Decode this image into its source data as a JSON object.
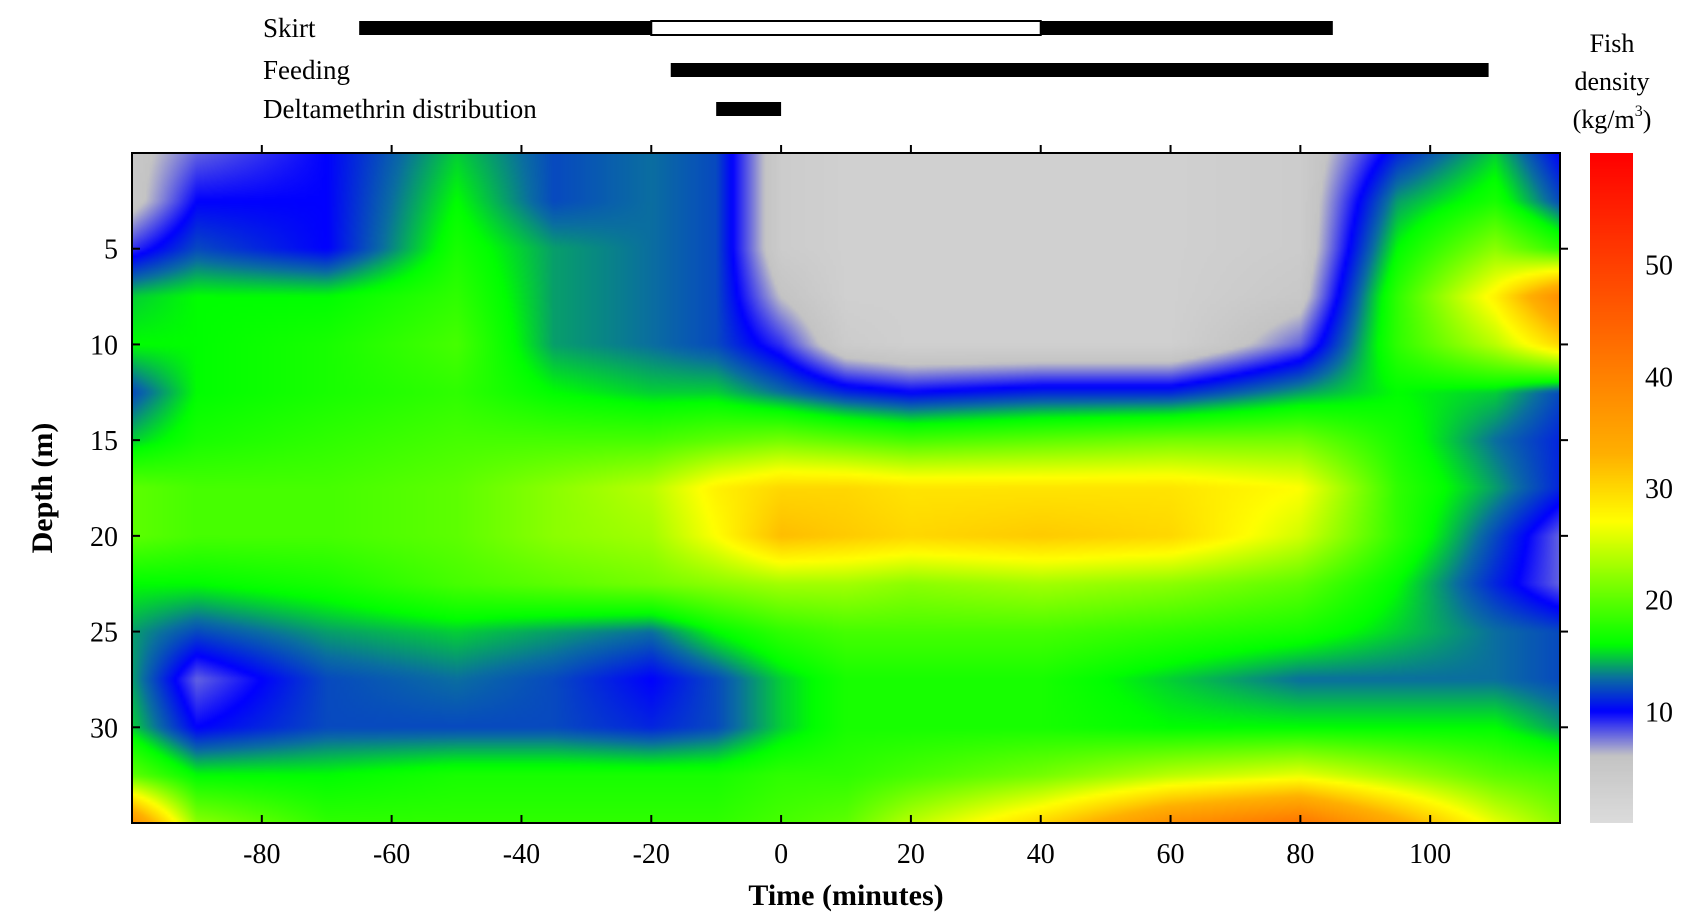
{
  "chart_data": {
    "type": "heatmap",
    "xlabel": "Time (minutes)",
    "ylabel": "Depth (m)",
    "xlim": [
      -100,
      120
    ],
    "ylim": [
      0,
      35
    ],
    "x_ticks": [
      -80,
      -60,
      -40,
      -20,
      0,
      20,
      40,
      60,
      80,
      100
    ],
    "y_ticks": [
      5,
      10,
      15,
      20,
      25,
      30
    ],
    "y_inverted": true,
    "colorbar": {
      "title_lines": [
        "Fish",
        "density",
        "(kg/m",
        "3",
        ")"
      ],
      "ticks": [
        10,
        20,
        30,
        40,
        50
      ],
      "range": [
        0,
        60
      ],
      "colors": [
        {
          "value": 0,
          "color": "#dcdcdc"
        },
        {
          "value": 6,
          "color": "#c4c4c4"
        },
        {
          "value": 10,
          "color": "#0000ff"
        },
        {
          "value": 13,
          "color": "#0a6ea0"
        },
        {
          "value": 16,
          "color": "#00ff00"
        },
        {
          "value": 27,
          "color": "#ffff00"
        },
        {
          "value": 33,
          "color": "#ffb000"
        },
        {
          "value": 45,
          "color": "#ff6000"
        },
        {
          "value": 60,
          "color": "#ff0000"
        }
      ]
    },
    "activity_bars": [
      {
        "label": "Skirt",
        "segments": [
          {
            "start": -65,
            "end": -20,
            "fill": "black"
          },
          {
            "start": -20,
            "end": 40,
            "fill": "white"
          },
          {
            "start": 40,
            "end": 85,
            "fill": "black"
          }
        ]
      },
      {
        "label": "Feeding",
        "segments": [
          {
            "start": -17,
            "end": 109,
            "fill": "black"
          }
        ]
      },
      {
        "label": "Deltamethrin distribution",
        "segments": [
          {
            "start": -10,
            "end": 0,
            "fill": "black"
          }
        ]
      }
    ],
    "density_grid": {
      "x": [
        -100,
        -90,
        -70,
        -50,
        -35,
        -20,
        -10,
        0,
        10,
        20,
        40,
        60,
        80,
        95,
        110,
        120
      ],
      "y": [
        0,
        2.5,
        5,
        7.5,
        10,
        12.5,
        15,
        17.5,
        20,
        22.5,
        25,
        27.5,
        30,
        32.5,
        35
      ],
      "z": [
        [
          5,
          8,
          10,
          15,
          12,
          13,
          12,
          4,
          3,
          3,
          3,
          3,
          4,
          11,
          15,
          10
        ],
        [
          5,
          10,
          10,
          16,
          12,
          13,
          12,
          4,
          3,
          3,
          3,
          3,
          4,
          14,
          17,
          12
        ],
        [
          9,
          12,
          10,
          17,
          14,
          13,
          12,
          4,
          3,
          3,
          3,
          3,
          4,
          16,
          22,
          18
        ],
        [
          15,
          16,
          16,
          18,
          14,
          13,
          12,
          6,
          3,
          3,
          3,
          3,
          5,
          18,
          28,
          38
        ],
        [
          16,
          16,
          17,
          19,
          14,
          13,
          12,
          9,
          4,
          3,
          3,
          3,
          8,
          18,
          24,
          30
        ],
        [
          12,
          16,
          17,
          18,
          16,
          15,
          15,
          13,
          11,
          10,
          11,
          11,
          14,
          16,
          15,
          12
        ],
        [
          15,
          17,
          18,
          19,
          19,
          19,
          20,
          21,
          20,
          19,
          20,
          21,
          21,
          17,
          13,
          11
        ],
        [
          20,
          19,
          19,
          20,
          22,
          24,
          28,
          30,
          30,
          29,
          29,
          29,
          27,
          18,
          14,
          11
        ],
        [
          20,
          19,
          19,
          20,
          22,
          23,
          27,
          32,
          31,
          30,
          31,
          30,
          25,
          18,
          12,
          8
        ],
        [
          16,
          16,
          17,
          19,
          20,
          21,
          22,
          23,
          23,
          22,
          23,
          22,
          20,
          16,
          11,
          8
        ],
        [
          14,
          12,
          14,
          15,
          14,
          13,
          16,
          18,
          19,
          19,
          19,
          18,
          17,
          15,
          13,
          12
        ],
        [
          14,
          8,
          12,
          13,
          12,
          10,
          12,
          15,
          17,
          17,
          17,
          15,
          13,
          13,
          13,
          12
        ],
        [
          15,
          10,
          12,
          12,
          12,
          11,
          12,
          15,
          17,
          17,
          17,
          16,
          16,
          16,
          16,
          14
        ],
        [
          20,
          16,
          16,
          17,
          17,
          17,
          17,
          18,
          18,
          19,
          21,
          24,
          26,
          23,
          20,
          19
        ],
        [
          38,
          22,
          18,
          18,
          18,
          18,
          18,
          19,
          20,
          24,
          30,
          38,
          42,
          34,
          26,
          22
        ]
      ]
    }
  }
}
